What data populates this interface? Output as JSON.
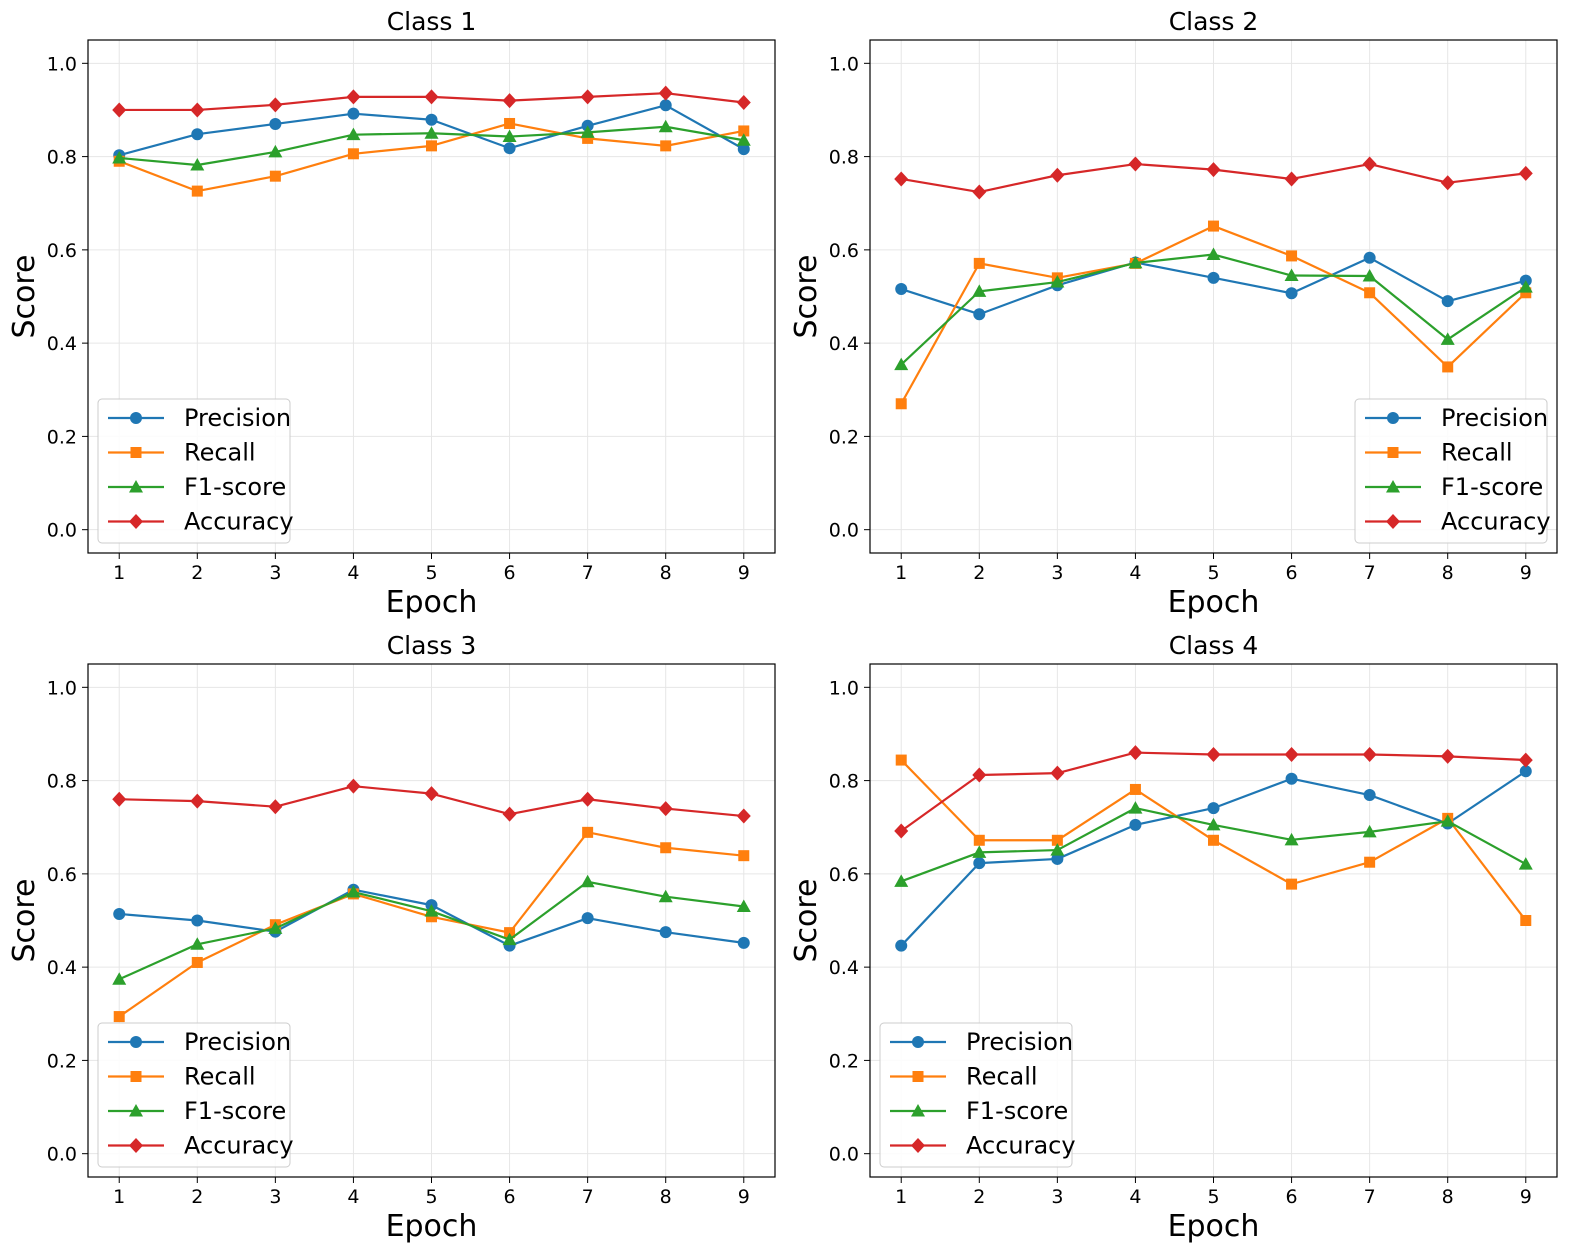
{
  "chart_data": [
    {
      "type": "line",
      "title": "Class 1",
      "xlabel": "Epoch",
      "ylabel": "Score",
      "ylim": [
        -0.05,
        1.05
      ],
      "xlim": [
        0.6,
        9.4
      ],
      "x": [
        1,
        2,
        3,
        4,
        5,
        6,
        7,
        8,
        9
      ],
      "yticks": [
        "0.0",
        "0.2",
        "0.4",
        "0.6",
        "0.8",
        "1.0"
      ],
      "grid": true,
      "legend_position": "bottom-left",
      "series": [
        {
          "name": "Precision",
          "color": "#1f77b4",
          "marker": "circle",
          "values": [
            0.803,
            0.848,
            0.87,
            0.892,
            0.879,
            0.818,
            0.866,
            0.91,
            0.816
          ]
        },
        {
          "name": "Recall",
          "color": "#ff7f0e",
          "marker": "square",
          "values": [
            0.79,
            0.726,
            0.758,
            0.806,
            0.823,
            0.871,
            0.839,
            0.823,
            0.855
          ]
        },
        {
          "name": "F1-score",
          "color": "#2ca02c",
          "marker": "triangle",
          "values": [
            0.797,
            0.782,
            0.81,
            0.847,
            0.85,
            0.843,
            0.852,
            0.864,
            0.835
          ]
        },
        {
          "name": "Accuracy",
          "color": "#d62728",
          "marker": "diamond",
          "values": [
            0.9,
            0.9,
            0.911,
            0.928,
            0.928,
            0.92,
            0.928,
            0.936,
            0.916
          ]
        }
      ]
    },
    {
      "type": "line",
      "title": "Class 2",
      "xlabel": "Epoch",
      "ylabel": "Score",
      "ylim": [
        -0.05,
        1.05
      ],
      "xlim": [
        0.6,
        9.4
      ],
      "x": [
        1,
        2,
        3,
        4,
        5,
        6,
        7,
        8,
        9
      ],
      "yticks": [
        "0.0",
        "0.2",
        "0.4",
        "0.6",
        "0.8",
        "1.0"
      ],
      "grid": true,
      "legend_position": "bottom-right",
      "series": [
        {
          "name": "Precision",
          "color": "#1f77b4",
          "marker": "circle",
          "values": [
            0.516,
            0.462,
            0.524,
            0.573,
            0.54,
            0.507,
            0.583,
            0.49,
            0.534
          ]
        },
        {
          "name": "Recall",
          "color": "#ff7f0e",
          "marker": "square",
          "values": [
            0.27,
            0.571,
            0.54,
            0.571,
            0.651,
            0.587,
            0.508,
            0.349,
            0.508
          ]
        },
        {
          "name": "F1-score",
          "color": "#2ca02c",
          "marker": "triangle",
          "values": [
            0.354,
            0.511,
            0.531,
            0.572,
            0.59,
            0.545,
            0.544,
            0.408,
            0.52
          ]
        },
        {
          "name": "Accuracy",
          "color": "#d62728",
          "marker": "diamond",
          "values": [
            0.752,
            0.724,
            0.76,
            0.784,
            0.772,
            0.752,
            0.784,
            0.744,
            0.764
          ]
        }
      ]
    },
    {
      "type": "line",
      "title": "Class 3",
      "xlabel": "Epoch",
      "ylabel": "Score",
      "ylim": [
        -0.05,
        1.05
      ],
      "xlim": [
        0.6,
        9.4
      ],
      "x": [
        1,
        2,
        3,
        4,
        5,
        6,
        7,
        8,
        9
      ],
      "yticks": [
        "0.0",
        "0.2",
        "0.4",
        "0.6",
        "0.8",
        "1.0"
      ],
      "grid": true,
      "legend_position": "bottom-left",
      "series": [
        {
          "name": "Precision",
          "color": "#1f77b4",
          "marker": "circle",
          "values": [
            0.514,
            0.5,
            0.476,
            0.566,
            0.533,
            0.446,
            0.505,
            0.475,
            0.452
          ]
        },
        {
          "name": "Recall",
          "color": "#ff7f0e",
          "marker": "square",
          "values": [
            0.294,
            0.41,
            0.491,
            0.557,
            0.508,
            0.474,
            0.689,
            0.656,
            0.639
          ]
        },
        {
          "name": "F1-score",
          "color": "#2ca02c",
          "marker": "triangle",
          "values": [
            0.374,
            0.449,
            0.483,
            0.561,
            0.52,
            0.459,
            0.583,
            0.551,
            0.53
          ]
        },
        {
          "name": "Accuracy",
          "color": "#d62728",
          "marker": "diamond",
          "values": [
            0.76,
            0.756,
            0.744,
            0.788,
            0.772,
            0.728,
            0.76,
            0.74,
            0.724
          ]
        }
      ]
    },
    {
      "type": "line",
      "title": "Class 4",
      "xlabel": "Epoch",
      "ylabel": "Score",
      "ylim": [
        -0.05,
        1.05
      ],
      "xlim": [
        0.6,
        9.4
      ],
      "x": [
        1,
        2,
        3,
        4,
        5,
        6,
        7,
        8,
        9
      ],
      "yticks": [
        "0.0",
        "0.2",
        "0.4",
        "0.6",
        "0.8",
        "1.0"
      ],
      "grid": true,
      "legend_position": "bottom-left",
      "series": [
        {
          "name": "Precision",
          "color": "#1f77b4",
          "marker": "circle",
          "values": [
            0.446,
            0.623,
            0.632,
            0.705,
            0.741,
            0.804,
            0.769,
            0.708,
            0.82
          ]
        },
        {
          "name": "Recall",
          "color": "#ff7f0e",
          "marker": "square",
          "values": [
            0.844,
            0.672,
            0.672,
            0.781,
            0.672,
            0.578,
            0.625,
            0.719,
            0.5
          ]
        },
        {
          "name": "F1-score",
          "color": "#2ca02c",
          "marker": "triangle",
          "values": [
            0.584,
            0.646,
            0.651,
            0.741,
            0.705,
            0.673,
            0.69,
            0.713,
            0.621
          ]
        },
        {
          "name": "Accuracy",
          "color": "#d62728",
          "marker": "diamond",
          "values": [
            0.692,
            0.812,
            0.816,
            0.86,
            0.856,
            0.856,
            0.856,
            0.852,
            0.844
          ]
        }
      ]
    }
  ]
}
